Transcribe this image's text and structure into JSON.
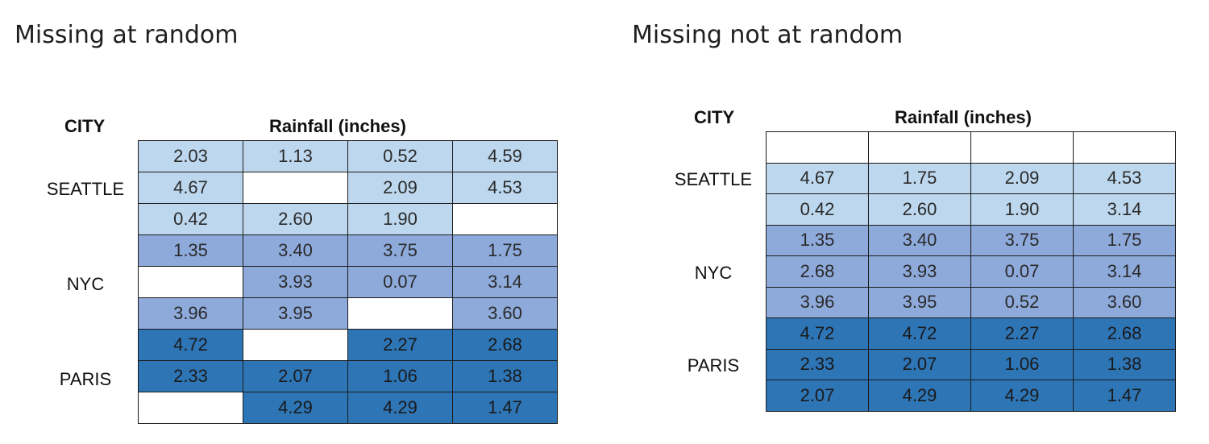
{
  "left": {
    "title": "Missing at random",
    "city_header": "CITY",
    "rain_header": "Rainfall (inches)",
    "cities": [
      "SEATTLE",
      "NYC",
      "PARIS"
    ],
    "rows": [
      [
        "2.03",
        "1.13",
        "0.52",
        "4.59"
      ],
      [
        "4.67",
        "",
        "2.09",
        "4.53"
      ],
      [
        "0.42",
        "2.60",
        "1.90",
        ""
      ],
      [
        "1.35",
        "3.40",
        "3.75",
        "1.75"
      ],
      [
        "",
        "3.93",
        "0.07",
        "3.14"
      ],
      [
        "3.96",
        "3.95",
        "",
        "3.60"
      ],
      [
        "4.72",
        "",
        "2.27",
        "2.68"
      ],
      [
        "2.33",
        "2.07",
        "1.06",
        "1.38"
      ],
      [
        "",
        "4.29",
        "4.29",
        "1.47"
      ]
    ]
  },
  "right": {
    "title": "Missing not at random",
    "city_header": "CITY",
    "rain_header": "Rainfall (inches)",
    "cities": [
      "SEATTLE",
      "NYC",
      "PARIS"
    ],
    "rows": [
      [
        "",
        "",
        "",
        ""
      ],
      [
        "4.67",
        "1.75",
        "2.09",
        "4.53"
      ],
      [
        "0.42",
        "2.60",
        "1.90",
        "3.14"
      ],
      [
        "1.35",
        "3.40",
        "3.75",
        "1.75"
      ],
      [
        "2.68",
        "3.93",
        "0.07",
        "3.14"
      ],
      [
        "3.96",
        "3.95",
        "0.52",
        "3.60"
      ],
      [
        "4.72",
        "4.72",
        "2.27",
        "2.68"
      ],
      [
        "2.33",
        "2.07",
        "1.06",
        "1.38"
      ],
      [
        "2.07",
        "4.29",
        "4.29",
        "1.47"
      ]
    ]
  },
  "colors": {
    "seattle": "#bdd7ee",
    "nyc": "#8eaadb",
    "paris": "#2e75b6",
    "missing": "#ffffff"
  }
}
